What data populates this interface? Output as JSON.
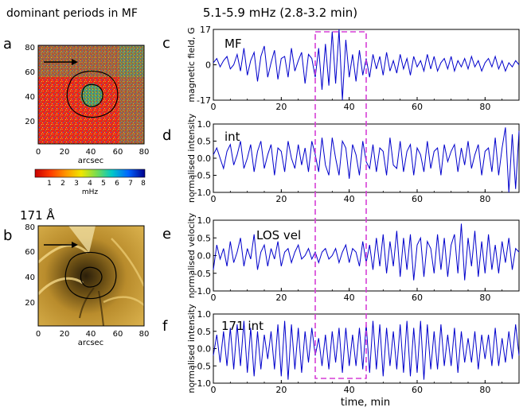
{
  "figure": {
    "left_title": "dominant periods in MF",
    "right_title": "5.1-5.9 mHz (2.8-3.2 min)"
  },
  "panel_a": {
    "letter": "a",
    "xlabel": "arcsec",
    "xticks": [
      "0",
      "20",
      "40",
      "60",
      "80"
    ],
    "yticks": [
      "20",
      "40",
      "60",
      "80"
    ],
    "colorbar_label": "mHz",
    "colorbar_ticks": [
      "1",
      "2",
      "3",
      "4",
      "5",
      "6",
      "7",
      "8"
    ],
    "colors": {
      "background": "#e8261c",
      "arrow": "#000000"
    }
  },
  "panel_b": {
    "letter": "b",
    "title": "171 Å",
    "xlabel": "arcsec",
    "xticks": [
      "0",
      "20",
      "40",
      "60",
      "80"
    ],
    "yticks": [
      "20",
      "40",
      "60",
      "80"
    ]
  },
  "highlight": {
    "x_range": [
      30,
      45
    ],
    "color": "#d63fd6"
  },
  "chart_data": [
    {
      "type": "line",
      "letter": "c",
      "label": "MF",
      "ylabel": "magnetic field, G",
      "xlim": [
        0,
        90
      ],
      "ylim": [
        -17,
        17
      ],
      "yticks": [
        "-17",
        "0",
        "17"
      ],
      "xticks": [
        "0",
        "20",
        "40",
        "60",
        "80"
      ],
      "color": "#0000cc",
      "x": [
        0,
        1,
        2,
        3,
        4,
        5,
        6,
        7,
        8,
        9,
        10,
        11,
        12,
        13,
        14,
        15,
        16,
        17,
        18,
        19,
        20,
        21,
        22,
        23,
        24,
        25,
        26,
        27,
        28,
        29,
        30,
        31,
        32,
        33,
        34,
        35,
        36,
        37,
        38,
        39,
        40,
        41,
        42,
        43,
        44,
        45,
        46,
        47,
        48,
        49,
        50,
        51,
        52,
        53,
        54,
        55,
        56,
        57,
        58,
        59,
        60,
        61,
        62,
        63,
        64,
        65,
        66,
        67,
        68,
        69,
        70,
        71,
        72,
        73,
        74,
        75,
        76,
        77,
        78,
        79,
        80,
        81,
        82,
        83,
        84,
        85,
        86,
        87,
        88,
        89,
        90
      ],
      "values": [
        1,
        3,
        -1,
        2,
        4,
        -2,
        0,
        5,
        -3,
        8,
        -5,
        2,
        6,
        -8,
        4,
        9,
        -6,
        1,
        7,
        -7,
        3,
        4,
        -6,
        8,
        -3,
        2,
        6,
        -9,
        5,
        3,
        -6,
        8,
        -12,
        10,
        -10,
        16,
        -9,
        17,
        -17,
        12,
        -6,
        5,
        -8,
        7,
        -5,
        3,
        -6,
        5,
        -2,
        4,
        -5,
        6,
        -3,
        2,
        -4,
        5,
        -2,
        3,
        -5,
        4,
        -1,
        2,
        -3,
        5,
        -2,
        4,
        -3,
        1,
        3,
        -2,
        4,
        -3,
        2,
        -1,
        3,
        -2,
        4,
        -1,
        2,
        -3,
        1,
        3,
        -1,
        4,
        -2,
        2,
        -3,
        1,
        -1,
        2,
        0
      ]
    },
    {
      "type": "line",
      "letter": "d",
      "label": "int",
      "ylabel": "normalised intensity",
      "xlim": [
        0,
        90
      ],
      "ylim": [
        -1,
        1
      ],
      "yticks": [
        "-1.0",
        "-0.5",
        "0.0",
        "0.5",
        "1.0"
      ],
      "xticks": [
        "0",
        "20",
        "40",
        "60",
        "80"
      ],
      "color": "#0000cc",
      "x": [
        0,
        1,
        2,
        3,
        4,
        5,
        6,
        7,
        8,
        9,
        10,
        11,
        12,
        13,
        14,
        15,
        16,
        17,
        18,
        19,
        20,
        21,
        22,
        23,
        24,
        25,
        26,
        27,
        28,
        29,
        30,
        31,
        32,
        33,
        34,
        35,
        36,
        37,
        38,
        39,
        40,
        41,
        42,
        43,
        44,
        45,
        46,
        47,
        48,
        49,
        50,
        51,
        52,
        53,
        54,
        55,
        56,
        57,
        58,
        59,
        60,
        61,
        62,
        63,
        64,
        65,
        66,
        67,
        68,
        69,
        70,
        71,
        72,
        73,
        74,
        75,
        76,
        77,
        78,
        79,
        80,
        81,
        82,
        83,
        84,
        85,
        86,
        87,
        88,
        89,
        90
      ],
      "values": [
        0.1,
        0.3,
        0.0,
        -0.3,
        0.2,
        0.4,
        -0.2,
        0.1,
        0.5,
        -0.3,
        0.0,
        0.4,
        -0.4,
        0.2,
        0.5,
        -0.3,
        0.1,
        0.4,
        -0.5,
        0.3,
        0.2,
        -0.4,
        0.5,
        0.0,
        -0.3,
        0.4,
        -0.2,
        0.3,
        -0.4,
        0.5,
        0.1,
        -0.4,
        0.6,
        -0.2,
        -0.5,
        0.6,
        0.0,
        -0.5,
        0.5,
        0.3,
        -0.6,
        0.4,
        0.1,
        -0.5,
        0.5,
        -0.1,
        -0.3,
        0.4,
        -0.4,
        0.3,
        0.2,
        -0.5,
        0.6,
        -0.2,
        -0.3,
        0.5,
        -0.4,
        0.2,
        0.4,
        -0.5,
        0.3,
        0.1,
        -0.4,
        0.5,
        -0.3,
        0.2,
        0.3,
        -0.5,
        0.4,
        -0.1,
        0.2,
        0.4,
        -0.4,
        0.3,
        -0.2,
        0.5,
        -0.3,
        0.1,
        0.4,
        -0.5,
        0.2,
        0.3,
        -0.4,
        0.6,
        -0.5,
        0.3,
        0.9,
        -1.0,
        0.7,
        -0.9,
        0.8
      ]
    },
    {
      "type": "line",
      "letter": "e",
      "label": "LOS vel",
      "ylabel": "normalised velocity",
      "xlim": [
        0,
        90
      ],
      "ylim": [
        -1,
        1
      ],
      "yticks": [
        "-1.0",
        "-0.5",
        "0.0",
        "0.5",
        "1.0"
      ],
      "xticks": [
        "0",
        "20",
        "40",
        "60",
        "80"
      ],
      "color": "#0000cc",
      "x": [
        0,
        1,
        2,
        3,
        4,
        5,
        6,
        7,
        8,
        9,
        10,
        11,
        12,
        13,
        14,
        15,
        16,
        17,
        18,
        19,
        20,
        21,
        22,
        23,
        24,
        25,
        26,
        27,
        28,
        29,
        30,
        31,
        32,
        33,
        34,
        35,
        36,
        37,
        38,
        39,
        40,
        41,
        42,
        43,
        44,
        45,
        46,
        47,
        48,
        49,
        50,
        51,
        52,
        53,
        54,
        55,
        56,
        57,
        58,
        59,
        60,
        61,
        62,
        63,
        64,
        65,
        66,
        67,
        68,
        69,
        70,
        71,
        72,
        73,
        74,
        75,
        76,
        77,
        78,
        79,
        80,
        81,
        82,
        83,
        84,
        85,
        86,
        87,
        88,
        89,
        90
      ],
      "values": [
        -0.4,
        0.3,
        -0.1,
        0.2,
        -0.3,
        0.4,
        -0.2,
        0.1,
        0.5,
        -0.3,
        0.2,
        -0.1,
        0.6,
        -0.4,
        0.1,
        0.3,
        -0.3,
        0.2,
        -0.1,
        0.4,
        -0.3,
        0.1,
        0.2,
        -0.2,
        0.1,
        0.3,
        -0.1,
        0.0,
        0.2,
        -0.1,
        0.1,
        -0.2,
        0.1,
        0.2,
        -0.1,
        0.0,
        0.2,
        -0.2,
        0.1,
        0.3,
        -0.2,
        0.2,
        0.1,
        -0.3,
        0.4,
        -0.2,
        0.3,
        -0.4,
        0.5,
        -0.3,
        0.6,
        -0.5,
        0.4,
        -0.3,
        0.7,
        -0.6,
        0.5,
        -0.4,
        0.6,
        -0.7,
        0.3,
        0.5,
        -0.6,
        0.4,
        0.2,
        -0.5,
        0.6,
        -0.4,
        0.5,
        -0.6,
        0.3,
        0.6,
        -0.5,
        0.9,
        -0.7,
        0.5,
        -0.3,
        0.7,
        -0.6,
        0.4,
        -0.5,
        0.6,
        -0.4,
        0.3,
        -0.5,
        0.4,
        -0.2,
        0.5,
        -0.4,
        0.2,
        0.1
      ]
    },
    {
      "type": "line",
      "letter": "f",
      "label": "171 int",
      "ylabel": "normalised intensity",
      "xlim": [
        0,
        90
      ],
      "ylim": [
        -1,
        1
      ],
      "yticks": [
        "-1.0",
        "-0.5",
        "0.0",
        "0.5",
        "1.0"
      ],
      "xticks": [
        "0",
        "20",
        "40",
        "60",
        "80"
      ],
      "color": "#0000cc",
      "x": [
        0,
        1,
        2,
        3,
        4,
        5,
        6,
        7,
        8,
        9,
        10,
        11,
        12,
        13,
        14,
        15,
        16,
        17,
        18,
        19,
        20,
        21,
        22,
        23,
        24,
        25,
        26,
        27,
        28,
        29,
        30,
        31,
        32,
        33,
        34,
        35,
        36,
        37,
        38,
        39,
        40,
        41,
        42,
        43,
        44,
        45,
        46,
        47,
        48,
        49,
        50,
        51,
        52,
        53,
        54,
        55,
        56,
        57,
        58,
        59,
        60,
        61,
        62,
        63,
        64,
        65,
        66,
        67,
        68,
        69,
        70,
        71,
        72,
        73,
        74,
        75,
        76,
        77,
        78,
        79,
        80,
        81,
        82,
        83,
        84,
        85,
        86,
        87,
        88,
        89,
        90
      ],
      "values": [
        -0.2,
        0.4,
        -0.4,
        0.5,
        -0.5,
        0.6,
        -0.6,
        0.7,
        -0.5,
        0.8,
        -0.7,
        0.6,
        -0.8,
        0.5,
        -0.6,
        0.4,
        -0.3,
        0.5,
        -0.6,
        0.7,
        -0.8,
        0.8,
        -0.9,
        0.7,
        -0.6,
        0.6,
        -0.7,
        0.5,
        -0.4,
        0.6,
        -0.2,
        0.3,
        -0.5,
        0.4,
        -0.6,
        0.5,
        -0.4,
        0.6,
        -0.7,
        0.6,
        -0.5,
        0.4,
        -0.5,
        0.6,
        -0.6,
        0.7,
        -0.7,
        0.8,
        -0.6,
        0.7,
        -0.8,
        0.6,
        -0.5,
        0.5,
        -0.6,
        0.7,
        -0.7,
        0.8,
        -0.8,
        0.6,
        -0.7,
        0.8,
        -0.9,
        0.7,
        -0.6,
        0.5,
        -0.6,
        0.7,
        -0.5,
        0.4,
        -0.5,
        0.6,
        -0.7,
        0.5,
        -0.4,
        0.3,
        -0.4,
        0.5,
        -0.6,
        0.4,
        -0.3,
        0.4,
        -0.5,
        0.6,
        -0.5,
        0.3,
        -0.4,
        0.5,
        -0.3,
        0.7,
        -0.2
      ]
    }
  ]
}
